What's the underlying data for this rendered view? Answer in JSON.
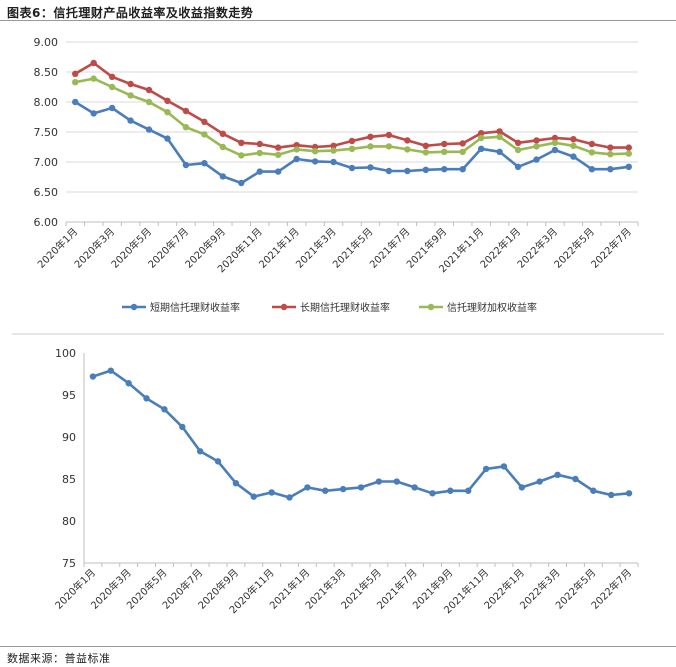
{
  "title": "图表6：信托理财产品收益率及收益指数走势",
  "source": "数据来源：普益标准",
  "colors": {
    "short": "#4a7ebb",
    "long": "#be4b48",
    "blend": "#98b954"
  },
  "chart_data": [
    {
      "type": "line",
      "xlabel": "",
      "ylabel": "",
      "ylim": [
        6.0,
        9.0
      ],
      "yticks": [
        "6.00",
        "6.50",
        "7.00",
        "7.50",
        "8.00",
        "8.50",
        "9.00"
      ],
      "xticks": [
        "2020年1月",
        "2020年3月",
        "2020年5月",
        "2020年7月",
        "2020年9月",
        "2020年11月",
        "2021年1月",
        "2021年3月",
        "2021年5月",
        "2021年7月",
        "2021年9月",
        "2021年11月",
        "2022年1月",
        "2022年3月",
        "2022年5月",
        "2022年7月"
      ],
      "grid": true,
      "legend_position": "bottom",
      "series": [
        {
          "name": "短期信托理财收益率",
          "color": "#4a7ebb",
          "values": [
            8.0,
            7.81,
            7.9,
            7.69,
            7.54,
            7.39,
            6.95,
            6.98,
            6.76,
            6.65,
            6.84,
            6.84,
            7.05,
            7.01,
            7.0,
            6.9,
            6.91,
            6.85,
            6.85,
            6.87,
            6.88,
            6.88,
            7.22,
            7.17,
            6.92,
            7.04,
            7.2,
            7.09,
            6.88,
            6.88,
            6.92
          ]
        },
        {
          "name": "长期信托理财收益率",
          "color": "#be4b48",
          "values": [
            8.47,
            8.65,
            8.42,
            8.3,
            8.2,
            8.02,
            7.85,
            7.67,
            7.47,
            7.32,
            7.3,
            7.24,
            7.28,
            7.25,
            7.27,
            7.35,
            7.42,
            7.45,
            7.36,
            7.27,
            7.3,
            7.31,
            7.48,
            7.51,
            7.32,
            7.36,
            7.4,
            7.38,
            7.3,
            7.24,
            7.24
          ]
        },
        {
          "name": "信托理财加权收益率",
          "color": "#98b954",
          "values": [
            8.33,
            8.39,
            8.25,
            8.11,
            8.0,
            7.83,
            7.58,
            7.46,
            7.25,
            7.11,
            7.15,
            7.12,
            7.21,
            7.18,
            7.19,
            7.22,
            7.26,
            7.26,
            7.21,
            7.16,
            7.17,
            7.17,
            7.4,
            7.42,
            7.2,
            7.26,
            7.32,
            7.27,
            7.16,
            7.13,
            7.14
          ]
        }
      ]
    },
    {
      "type": "line",
      "xlabel": "",
      "ylabel": "",
      "ylim": [
        75,
        100
      ],
      "yticks": [
        "75",
        "80",
        "85",
        "90",
        "95",
        "100"
      ],
      "xticks": [
        "2020年1月",
        "2020年3月",
        "2020年5月",
        "2020年7月",
        "2020年9月",
        "2020年11月",
        "2021年1月",
        "2021年3月",
        "2021年5月",
        "2021年7月",
        "2021年9月",
        "2021年11月",
        "2022年1月",
        "2022年3月",
        "2022年5月",
        "2022年7月"
      ],
      "grid": false,
      "series": [
        {
          "color": "#4a7ebb",
          "values": [
            97.2,
            97.9,
            96.4,
            94.6,
            93.3,
            91.2,
            88.3,
            87.1,
            84.5,
            82.9,
            83.4,
            82.8,
            84.0,
            83.6,
            83.8,
            84.0,
            84.7,
            84.7,
            84.0,
            83.3,
            83.6,
            83.6,
            86.2,
            86.5,
            84.0,
            84.7,
            85.5,
            85.0,
            83.6,
            83.1,
            83.3
          ]
        }
      ]
    }
  ]
}
